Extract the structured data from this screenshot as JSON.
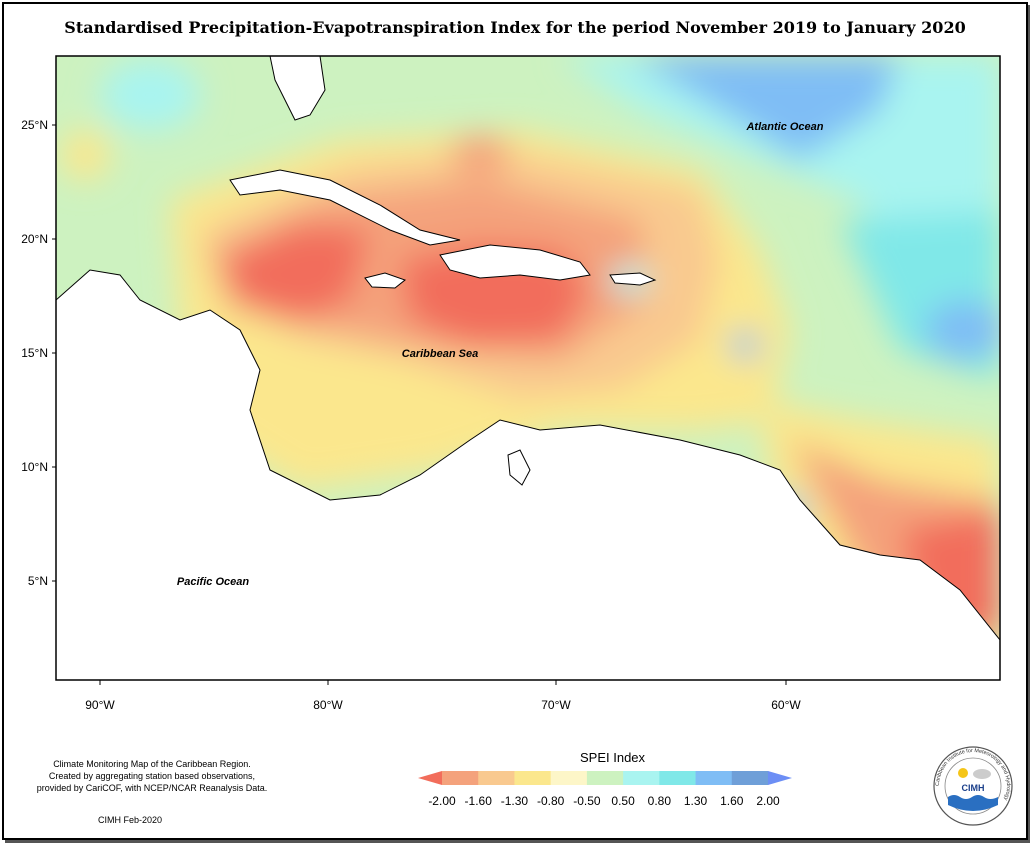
{
  "title": "Standardised Precipitation-Evapotranspiration Index for the period November 2019 to January 2020",
  "labels": {
    "atlantic": "Atlantic Ocean",
    "caribbean": "Caribbean Sea",
    "pacific": "Pacific Ocean"
  },
  "axes": {
    "lat_ticks": [
      "25°N",
      "20°N",
      "15°N",
      "10°N",
      "5°N"
    ],
    "lon_ticks": [
      "90°W",
      "80°W",
      "70°W",
      "60°W"
    ]
  },
  "legend": {
    "title": "SPEI Index",
    "ticks": [
      "-2.00",
      "-1.60",
      "-1.30",
      "-0.80",
      "-0.50",
      "0.50",
      "0.80",
      "1.30",
      "1.60",
      "2.00"
    ],
    "colors": [
      "#f26d5b",
      "#f4a27c",
      "#f9c98f",
      "#fbe78d",
      "#fdf6c8",
      "#cdf2c0",
      "#a9f4f0",
      "#80e8e8",
      "#7fbdf5",
      "#6f9fd8",
      "#6c8ef5"
    ]
  },
  "credit": {
    "line1": "Climate Monitoring Map of the Caribbean Region.",
    "line2": "Created by aggregating station based observations,",
    "line3": "provided by CariCOF, with NCEP/NCAR Reanalysis Data."
  },
  "stamp": "CIMH Feb-2020",
  "logo": {
    "acronym": "CIMH",
    "ring_text": "Caribbean Institute for Meteorology and Hydrology"
  }
}
